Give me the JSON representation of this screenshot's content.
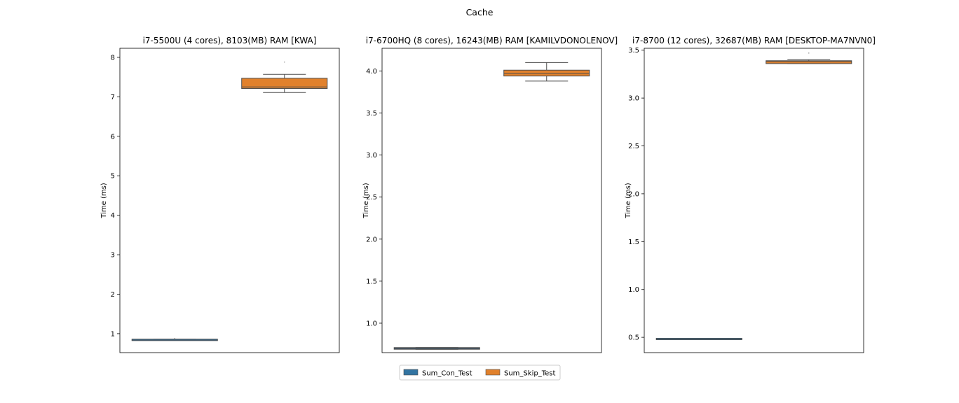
{
  "figure": {
    "title": "Cache"
  },
  "chart_data": [
    {
      "type": "box",
      "title": "i7-5500U (4 cores), 8103(MB) RAM [KWA]",
      "xlabel": "",
      "ylabel": "Time (ms)",
      "ylim": [
        0.52,
        8.23
      ],
      "yticks": [
        1,
        2,
        3,
        4,
        5,
        6,
        7,
        8
      ],
      "grid": false,
      "series": [
        {
          "name": "Sum_Con_Test",
          "color": "#3274a1",
          "whislo": 0.85,
          "q1": 0.85,
          "median": 0.86,
          "q3": 0.86,
          "whishi": 0.86,
          "fliers": [
            0.88
          ]
        },
        {
          "name": "Sum_Skip_Test",
          "color": "#e1812c",
          "whislo": 7.11,
          "q1": 7.21,
          "median": 7.25,
          "q3": 7.47,
          "whishi": 7.57,
          "fliers": [
            7.88
          ]
        }
      ]
    },
    {
      "type": "box",
      "title": "i7-6700HQ (8 cores), 16243(MB) RAM [KAMILVDONOLENOV]",
      "xlabel": "",
      "ylabel": "Time (ms)",
      "ylim": [
        0.65,
        4.27
      ],
      "yticks": [
        "1.0",
        "1.5",
        "2.0",
        "2.5",
        "3.0",
        "3.5",
        "4.0"
      ],
      "grid": false,
      "series": [
        {
          "name": "Sum_Con_Test",
          "color": "#3274a1",
          "whislo": 0.69,
          "q1": 0.69,
          "median": 0.7,
          "q3": 0.71,
          "whishi": 0.71,
          "fliers": []
        },
        {
          "name": "Sum_Skip_Test",
          "color": "#e1812c",
          "whislo": 3.88,
          "q1": 3.94,
          "median": 3.97,
          "q3": 4.01,
          "whishi": 4.1,
          "fliers": []
        }
      ]
    },
    {
      "type": "box",
      "title": "i7-8700 (12 cores), 32687(MB) RAM [DESKTOP-MA7NVN0]",
      "xlabel": "",
      "ylabel": "Time (ms)",
      "ylim": [
        0.34,
        3.52
      ],
      "yticks": [
        "0.5",
        "1.0",
        "1.5",
        "2.0",
        "2.5",
        "3.0",
        "3.5"
      ],
      "grid": false,
      "series": [
        {
          "name": "Sum_Con_Test",
          "color": "#3274a1",
          "whislo": 0.48,
          "q1": 0.48,
          "median": 0.49,
          "q3": 0.49,
          "whishi": 0.49,
          "fliers": []
        },
        {
          "name": "Sum_Skip_Test",
          "color": "#e1812c",
          "whislo": 3.36,
          "q1": 3.36,
          "median": 3.38,
          "q3": 3.39,
          "whishi": 3.4,
          "fliers": [
            3.47
          ]
        }
      ]
    }
  ],
  "legend": {
    "placement": "bottom-center",
    "items": [
      {
        "label": "Sum_Con_Test",
        "color": "#3274a1"
      },
      {
        "label": "Sum_Skip_Test",
        "color": "#e1812c"
      }
    ]
  }
}
